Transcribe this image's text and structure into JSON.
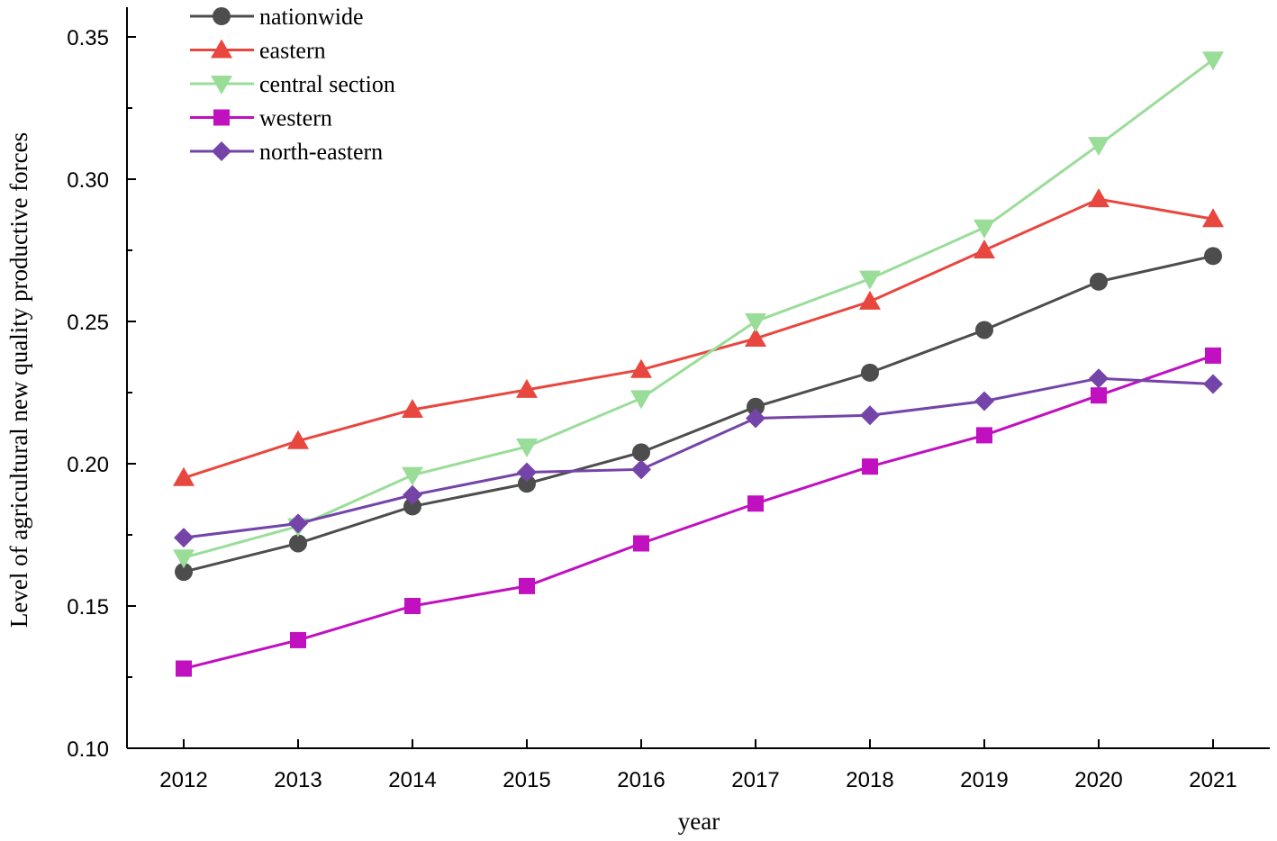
{
  "chart_data": {
    "type": "line",
    "title": "",
    "xlabel": "year",
    "ylabel": "Level of agricultural new quality productive forces",
    "ylim": [
      0.1,
      0.36
    ],
    "yticks": [
      0.1,
      0.15,
      0.2,
      0.25,
      0.3,
      0.35
    ],
    "ytick_labels": [
      "0.10",
      "0.15",
      "0.20",
      "0.25",
      "0.30",
      "0.35"
    ],
    "categories": [
      "2012",
      "2013",
      "2014",
      "2015",
      "2016",
      "2017",
      "2018",
      "2019",
      "2020",
      "2021"
    ],
    "grid": false,
    "legend_position": "top-left",
    "series": [
      {
        "name": "nationwide",
        "color": "#4d4d4d",
        "marker": "circle",
        "values": [
          0.162,
          0.172,
          0.185,
          0.193,
          0.204,
          0.22,
          0.232,
          0.247,
          0.264,
          0.273
        ]
      },
      {
        "name": "eastern",
        "color": "#e8473f",
        "marker": "triangle-up",
        "values": [
          0.195,
          0.208,
          0.219,
          0.226,
          0.233,
          0.244,
          0.257,
          0.275,
          0.293,
          0.286
        ]
      },
      {
        "name": "central section",
        "color": "#99dd99",
        "marker": "triangle-down",
        "values": [
          0.167,
          0.178,
          0.196,
          0.206,
          0.223,
          0.25,
          0.265,
          0.283,
          0.312,
          0.342
        ]
      },
      {
        "name": "western",
        "color": "#c010c0",
        "marker": "square",
        "values": [
          0.128,
          0.138,
          0.15,
          0.157,
          0.172,
          0.186,
          0.199,
          0.21,
          0.224,
          0.238
        ]
      },
      {
        "name": "north-eastern",
        "color": "#7444a8",
        "marker": "diamond",
        "values": [
          0.174,
          0.179,
          0.189,
          0.197,
          0.198,
          0.216,
          0.217,
          0.222,
          0.23,
          0.228
        ]
      }
    ]
  }
}
